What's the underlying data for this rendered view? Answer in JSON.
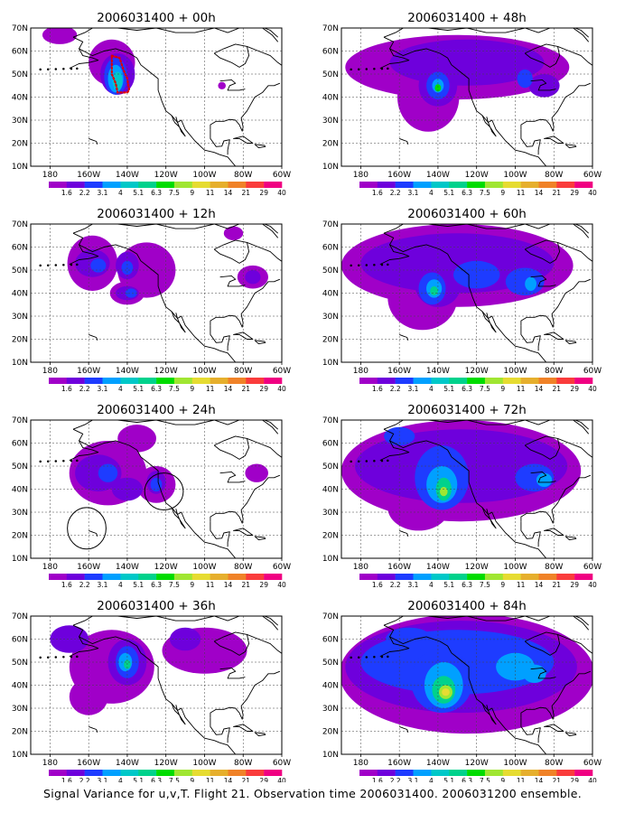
{
  "caption": "Signal Variance for u,v,T. Flight 21. Observation time 2006031400. 2006031200 ensemble.",
  "panels": [
    {
      "title": "2006031400 + 00h",
      "hour": 0
    },
    {
      "title": "2006031400 + 48h",
      "hour": 48
    },
    {
      "title": "2006031400 + 12h",
      "hour": 12
    },
    {
      "title": "2006031400 + 60h",
      "hour": 60
    },
    {
      "title": "2006031400 + 24h",
      "hour": 24
    },
    {
      "title": "2006031400 + 72h",
      "hour": 72
    },
    {
      "title": "2006031400 + 36h",
      "hour": 36
    },
    {
      "title": "2006031400 + 84h",
      "hour": 84
    }
  ],
  "map": {
    "lon_ticks": [
      "180",
      "160W",
      "140W",
      "120W",
      "100W",
      "80W",
      "60W"
    ],
    "lat_ticks": [
      "70N",
      "60N",
      "50N",
      "40N",
      "30N",
      "20N",
      "10N"
    ],
    "gridlines": "dashed"
  },
  "colorbar": {
    "labels": [
      "1.6",
      "2.2",
      "3.1",
      "4",
      "5.1",
      "6.3",
      "7.5",
      "9",
      "11",
      "14",
      "21",
      "29",
      "40"
    ],
    "colors": [
      "#a000c8",
      "#6e00dc",
      "#1e3cff",
      "#00a0ff",
      "#00c8c8",
      "#00d28c",
      "#00dc00",
      "#a0e632",
      "#e6dc32",
      "#e6af2d",
      "#f08228",
      "#fa3c3c",
      "#f00082"
    ]
  },
  "annotations": {
    "flight_track_color": "#e00000"
  }
}
